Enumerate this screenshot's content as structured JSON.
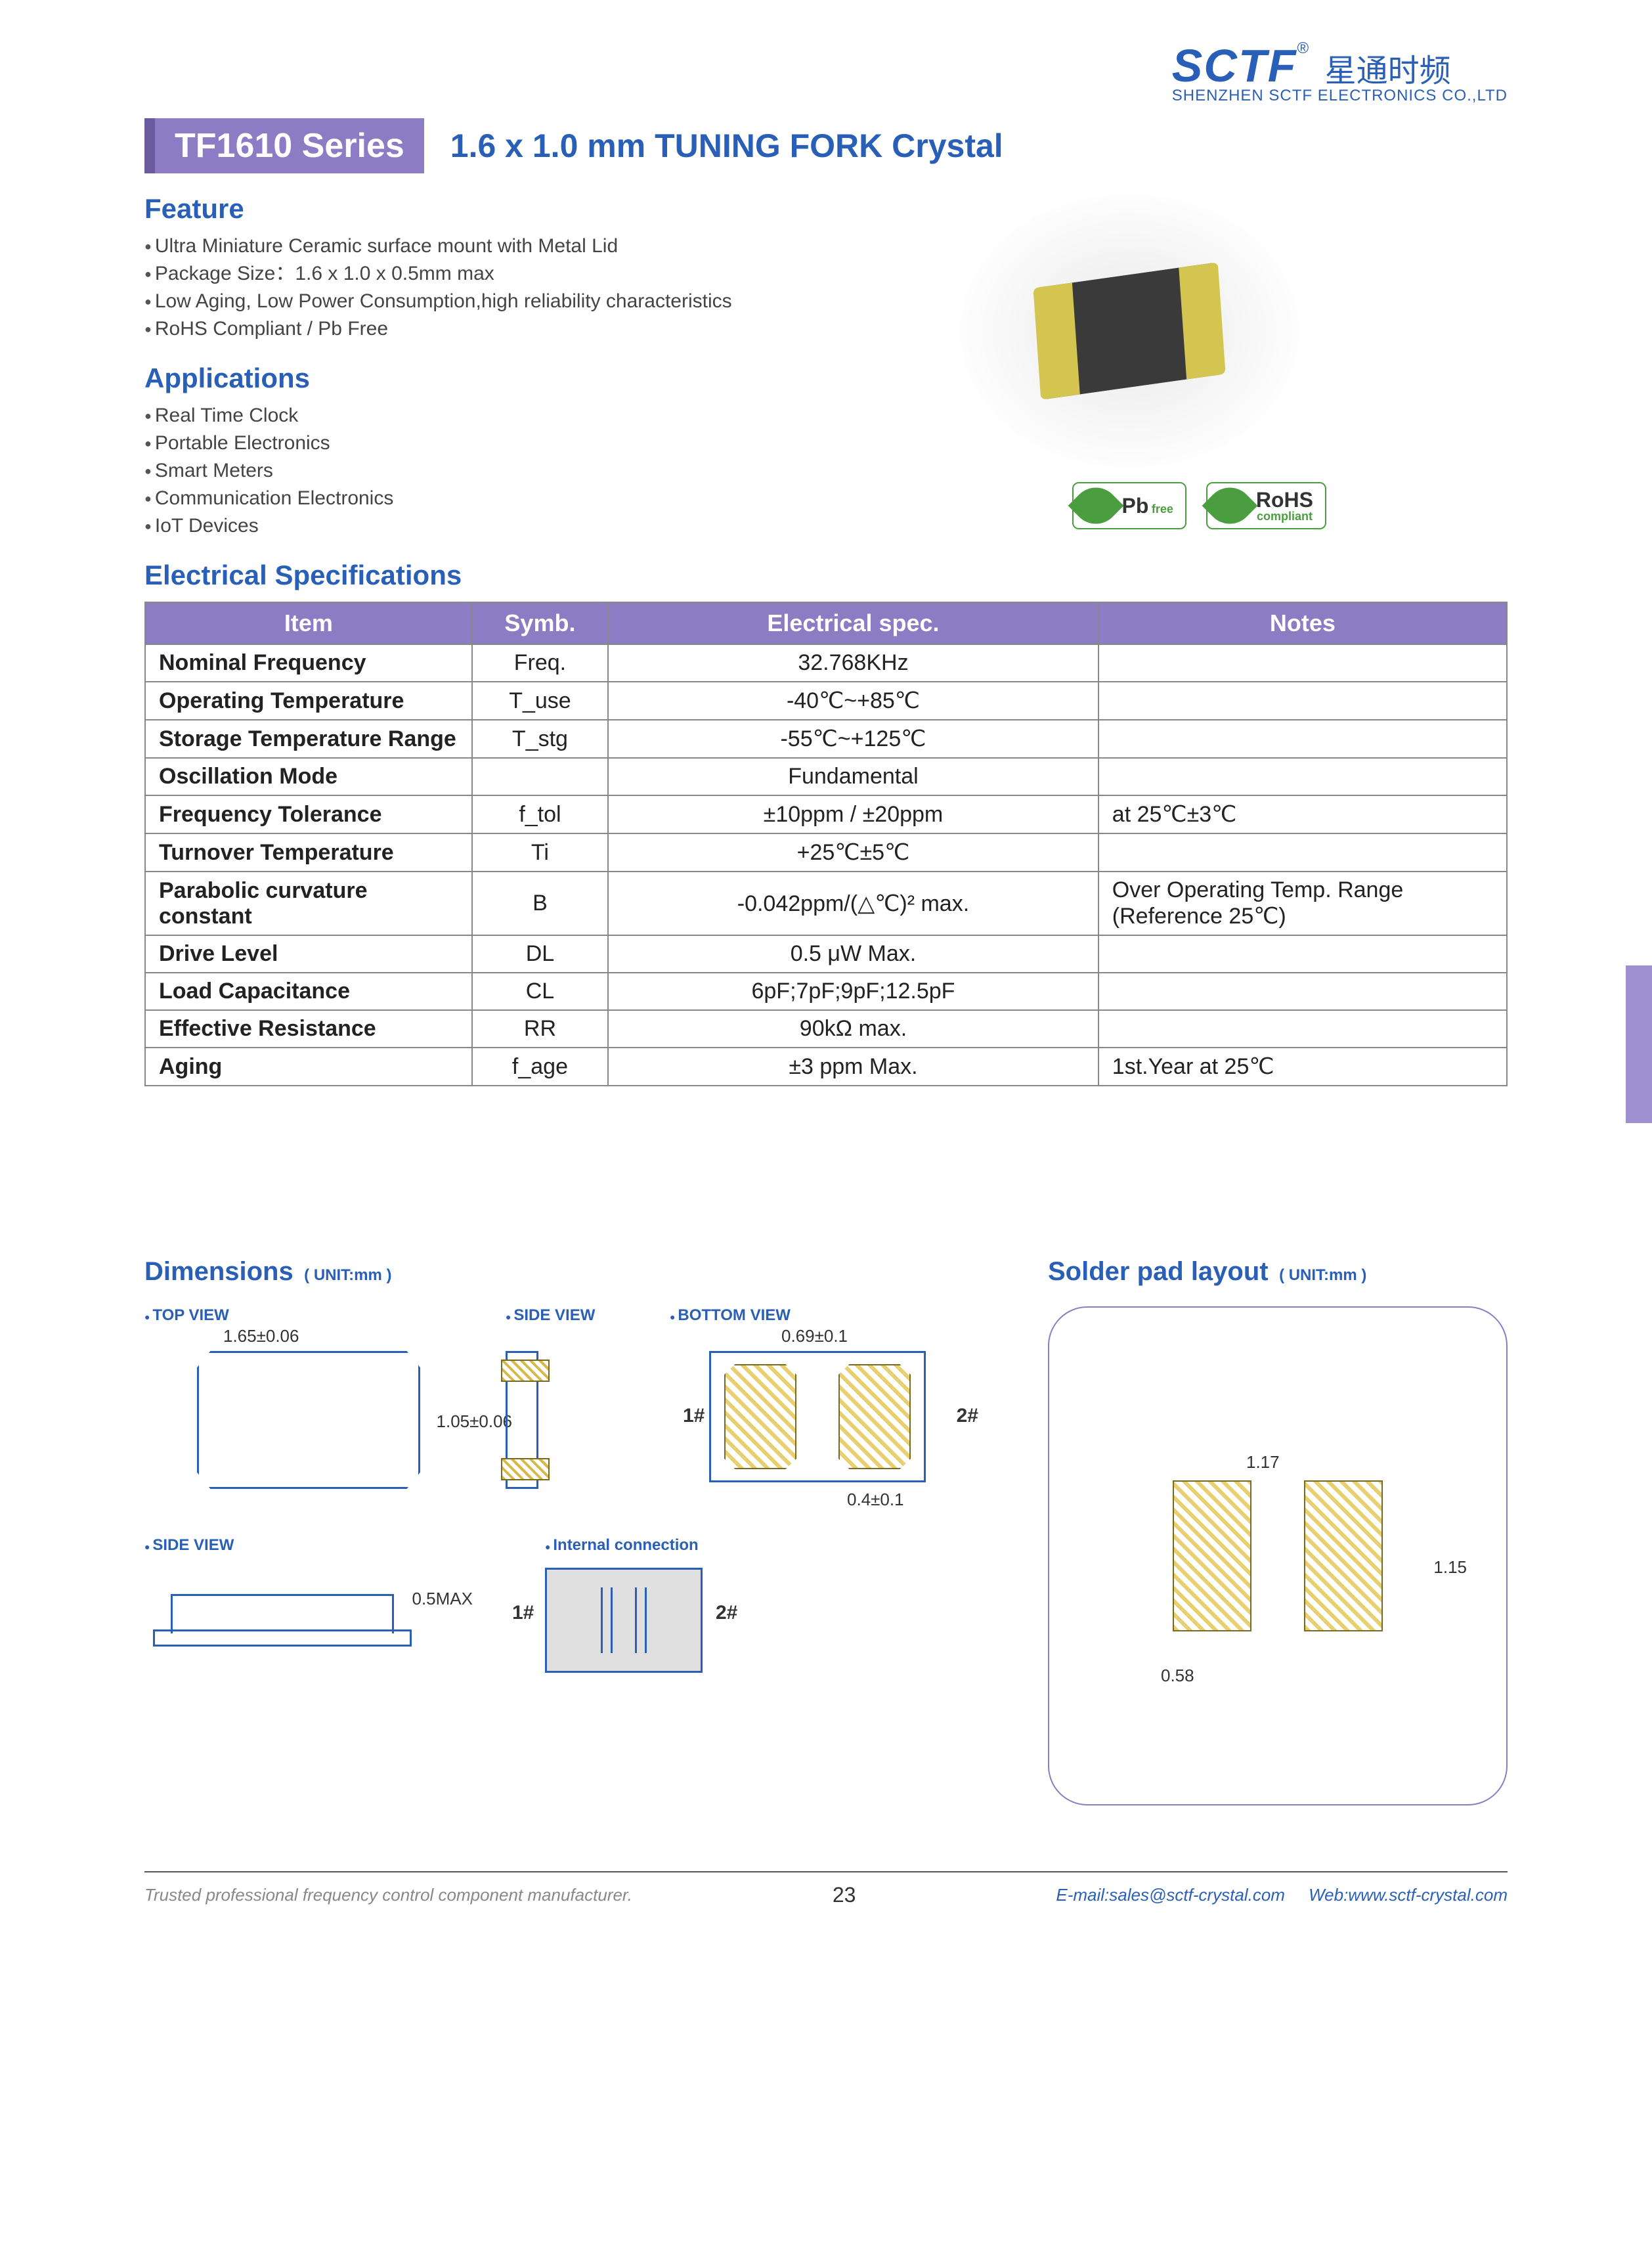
{
  "logo": {
    "main": "SCTF",
    "reg": "®",
    "cn": "星通时频",
    "sub": "SHENZHEN SCTF ELECTRONICS CO.,LTD"
  },
  "title": {
    "series": "TF1610 Series",
    "product": "1.6 x 1.0 mm TUNING FORK Crystal"
  },
  "features": {
    "heading": "Feature",
    "items": [
      "Ultra Miniature Ceramic surface mount with Metal Lid",
      "Package Size：1.6 x 1.0 x 0.5mm max",
      "Low Aging, Low Power Consumption,high reliability characteristics",
      "RoHS Compliant / Pb Free"
    ]
  },
  "applications": {
    "heading": "Applications",
    "items": [
      "Real Time Clock",
      "Portable Electronics",
      "Smart Meters",
      "Communication Electronics",
      "IoT Devices"
    ]
  },
  "badges": {
    "pb_main": "Pb",
    "pb_sub": "free",
    "rohs_main": "RoHS",
    "rohs_sub": "compliant"
  },
  "specs": {
    "heading": "Electrical Specifications",
    "columns": [
      "Item",
      "Symb.",
      "Electrical spec.",
      "Notes"
    ],
    "rows": [
      [
        "Nominal Frequency",
        "Freq.",
        "32.768KHz",
        ""
      ],
      [
        "Operating Temperature",
        "T_use",
        "-40℃~+85℃",
        ""
      ],
      [
        "Storage Temperature Range",
        "T_stg",
        "-55℃~+125℃",
        ""
      ],
      [
        "Oscillation Mode",
        "",
        "Fundamental",
        ""
      ],
      [
        "Frequency Tolerance",
        "f_tol",
        "±10ppm / ±20ppm",
        "at 25℃±3℃"
      ],
      [
        "Turnover Temperature",
        "Ti",
        "+25℃±5℃",
        ""
      ],
      [
        "Parabolic curvature constant",
        "B",
        "-0.042ppm/(△℃)² max.",
        "Over Operating Temp. Range (Reference 25℃)"
      ],
      [
        "Drive Level",
        "DL",
        "0.5 μW Max.",
        ""
      ],
      [
        "Load Capacitance",
        "CL",
        "6pF;7pF;9pF;12.5pF",
        ""
      ],
      [
        "Effective Resistance",
        "RR",
        "90kΩ max.",
        ""
      ],
      [
        "Aging",
        "f_age",
        "±3 ppm Max.",
        "1st.Year at 25℃"
      ]
    ]
  },
  "dimensions": {
    "heading": "Dimensions",
    "unit": "( UNIT:mm )",
    "labels": {
      "top": "TOP VIEW",
      "side": "SIDE VIEW",
      "bottom": "BOTTOM VIEW",
      "internal": "Internal connection"
    },
    "vals": {
      "width": "1.65±0.06",
      "height": "1.05±0.06",
      "pad_w": "0.69±0.1",
      "pad_gap": "0.4±0.1",
      "thickness": "0.5MAX",
      "pin1": "1#",
      "pin2": "2#"
    }
  },
  "solder": {
    "heading": "Solder pad layout",
    "unit": "( UNIT:mm )",
    "vals": {
      "pitch": "1.17",
      "h": "1.15",
      "w": "0.58"
    }
  },
  "footer": {
    "left": "Trusted professional frequency control component manufacturer.",
    "page": "23",
    "email_label": "E-mail:",
    "email": "sales@sctf-crystal.com",
    "web_label": "Web:",
    "web": "www.sctf-crystal.com"
  },
  "colors": {
    "primary_blue": "#2a5fb8",
    "purple": "#8b7cc4",
    "green": "#4a9e3f"
  }
}
